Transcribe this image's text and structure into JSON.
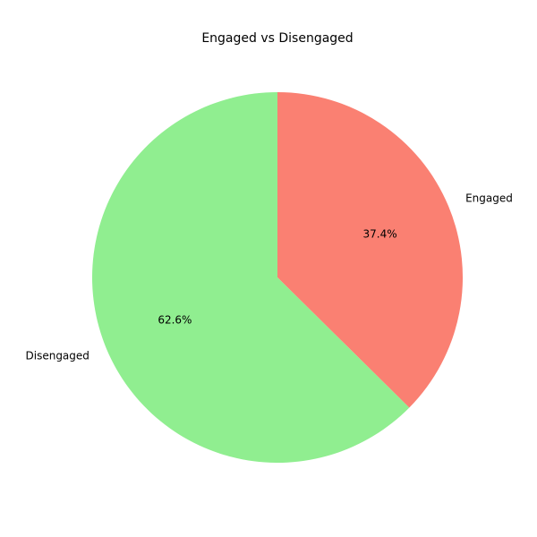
{
  "chart_data": {
    "type": "pie",
    "title": "Engaged vs Disengaged",
    "slices": [
      {
        "label": "Engaged",
        "value": 37.4,
        "pct_label": "37.4%",
        "color": "#fa8072"
      },
      {
        "label": "Disengaged",
        "value": 62.6,
        "pct_label": "62.6%",
        "color": "#90ee90"
      }
    ],
    "start_angle_deg": 90,
    "direction": "clockwise"
  }
}
